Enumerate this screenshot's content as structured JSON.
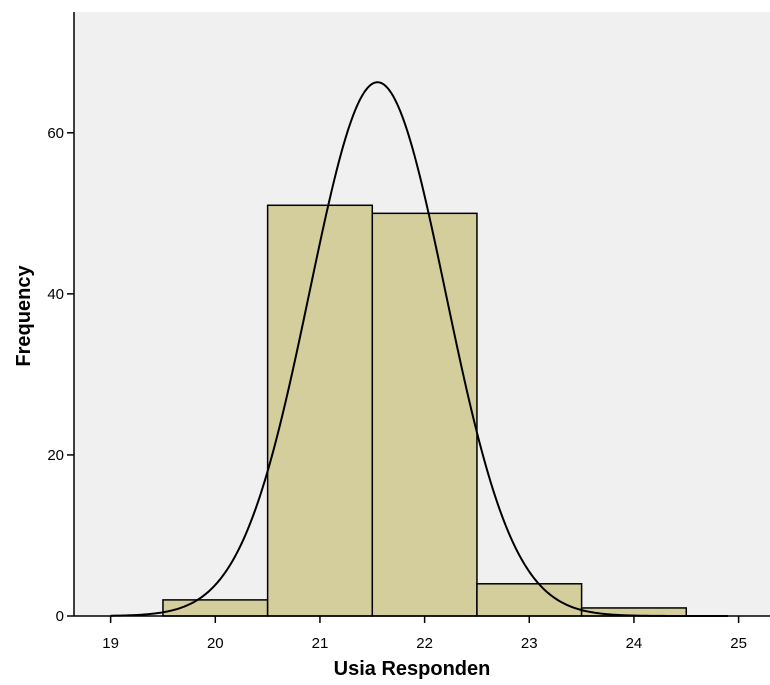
{
  "chart_data": {
    "type": "bar",
    "subtype": "histogram-with-normal-curve",
    "title": "",
    "xlabel": "Usia Responden",
    "ylabel": "Frequency",
    "xlim": [
      18.65,
      25.3
    ],
    "ylim": [
      0,
      75
    ],
    "x_ticks": [
      19,
      20,
      21,
      22,
      23,
      24,
      25
    ],
    "y_ticks": [
      0,
      20,
      40,
      60
    ],
    "bins": [
      {
        "x0": 19.5,
        "x1": 20.5,
        "value": 2
      },
      {
        "x0": 20.5,
        "x1": 21.5,
        "value": 51
      },
      {
        "x0": 21.5,
        "x1": 22.5,
        "value": 50
      },
      {
        "x0": 22.5,
        "x1": 23.5,
        "value": 4
      },
      {
        "x0": 23.5,
        "x1": 24.5,
        "value": 1
      }
    ],
    "normal_curve": {
      "mean": 21.55,
      "sd": 0.65,
      "n": 108,
      "bin_width": 1
    },
    "grid": false,
    "colors": {
      "plot_background": "#f0f0f0",
      "bar_fill": "#d3ce9b",
      "bar_stroke": "#000000",
      "curve": "#000000",
      "axis": "#000000"
    }
  }
}
